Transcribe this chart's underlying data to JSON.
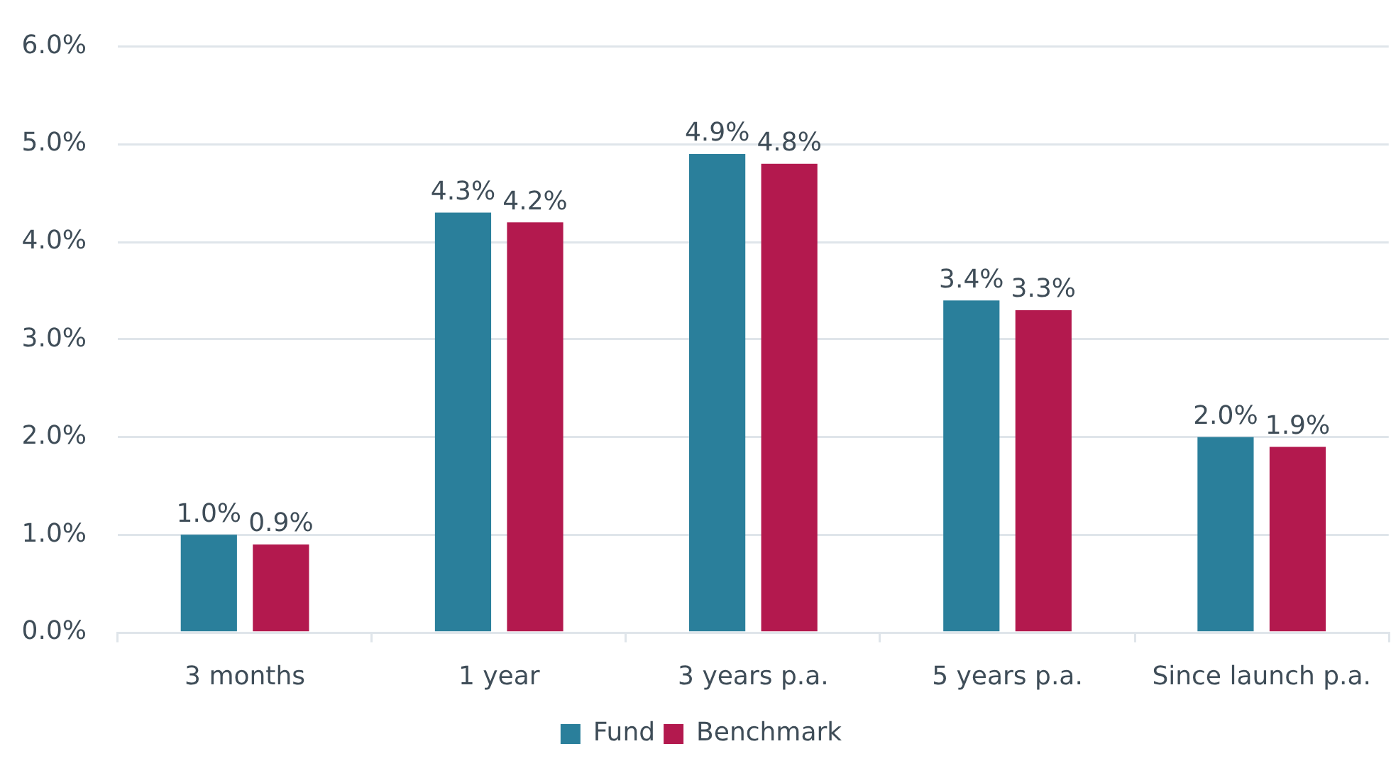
{
  "chart_data": {
    "type": "bar",
    "categories": [
      "3 months",
      "1 year",
      "3 years p.a.",
      "5 years p.a.",
      "Since launch p.a."
    ],
    "series": [
      {
        "name": "Fund",
        "color": "#2a7f9b",
        "values": [
          1.0,
          4.3,
          4.9,
          3.4,
          2.0
        ],
        "value_labels": [
          "1.0%",
          "4.3%",
          "4.9%",
          "3.4%",
          "2.0%"
        ]
      },
      {
        "name": "Benchmark",
        "color": "#b3194e",
        "values": [
          0.9,
          4.2,
          4.8,
          3.3,
          1.9
        ],
        "value_labels": [
          "0.9%",
          "4.2%",
          "4.8%",
          "3.3%",
          "1.9%"
        ]
      }
    ],
    "ylim": [
      0,
      6
    ],
    "yticks": [
      {
        "value": 0,
        "label": "0.0%"
      },
      {
        "value": 1,
        "label": "1.0%"
      },
      {
        "value": 2,
        "label": "2.0%"
      },
      {
        "value": 3,
        "label": "3.0%"
      },
      {
        "value": 4,
        "label": "4.0%"
      },
      {
        "value": 5,
        "label": "5.0%"
      },
      {
        "value": 6,
        "label": "6.0%"
      }
    ],
    "grid": "y",
    "legend": "bottom"
  }
}
